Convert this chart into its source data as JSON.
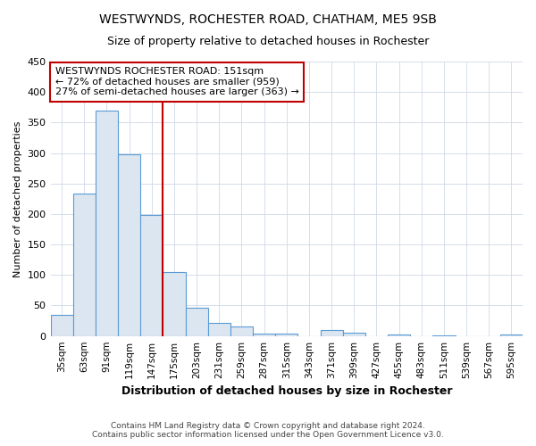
{
  "title": "WESTWYNDS, ROCHESTER ROAD, CHATHAM, ME5 9SB",
  "subtitle": "Size of property relative to detached houses in Rochester",
  "xlabel": "Distribution of detached houses by size in Rochester",
  "ylabel": "Number of detached properties",
  "footer1": "Contains HM Land Registry data © Crown copyright and database right 2024.",
  "footer2": "Contains public sector information licensed under the Open Government Licence v3.0.",
  "annotation_title": "WESTWYNDS ROCHESTER ROAD: 151sqm",
  "annotation_line1": "← 72% of detached houses are smaller (959)",
  "annotation_line2": "27% of semi-detached houses are larger (363) →",
  "bar_edge_color": "#5b9bd5",
  "bar_face_color": "#dce6f1",
  "redline_color": "#c00000",
  "annotation_box_color": "#c00000",
  "categories": [
    "35sqm",
    "63sqm",
    "91sqm",
    "119sqm",
    "147sqm",
    "175sqm",
    "203sqm",
    "231sqm",
    "259sqm",
    "287sqm",
    "315sqm",
    "343sqm",
    "371sqm",
    "399sqm",
    "427sqm",
    "455sqm",
    "483sqm",
    "511sqm",
    "539sqm",
    "567sqm",
    "595sqm"
  ],
  "values": [
    35,
    234,
    370,
    298,
    198,
    105,
    46,
    22,
    15,
    4,
    4,
    0,
    10,
    5,
    0,
    2,
    0,
    1,
    0,
    0,
    3
  ],
  "red_line_index": 4.5,
  "ylim": [
    0,
    450
  ],
  "yticks": [
    0,
    50,
    100,
    150,
    200,
    250,
    300,
    350,
    400,
    450
  ],
  "background_color": "#ffffff",
  "grid_color": "#d0d8e8"
}
